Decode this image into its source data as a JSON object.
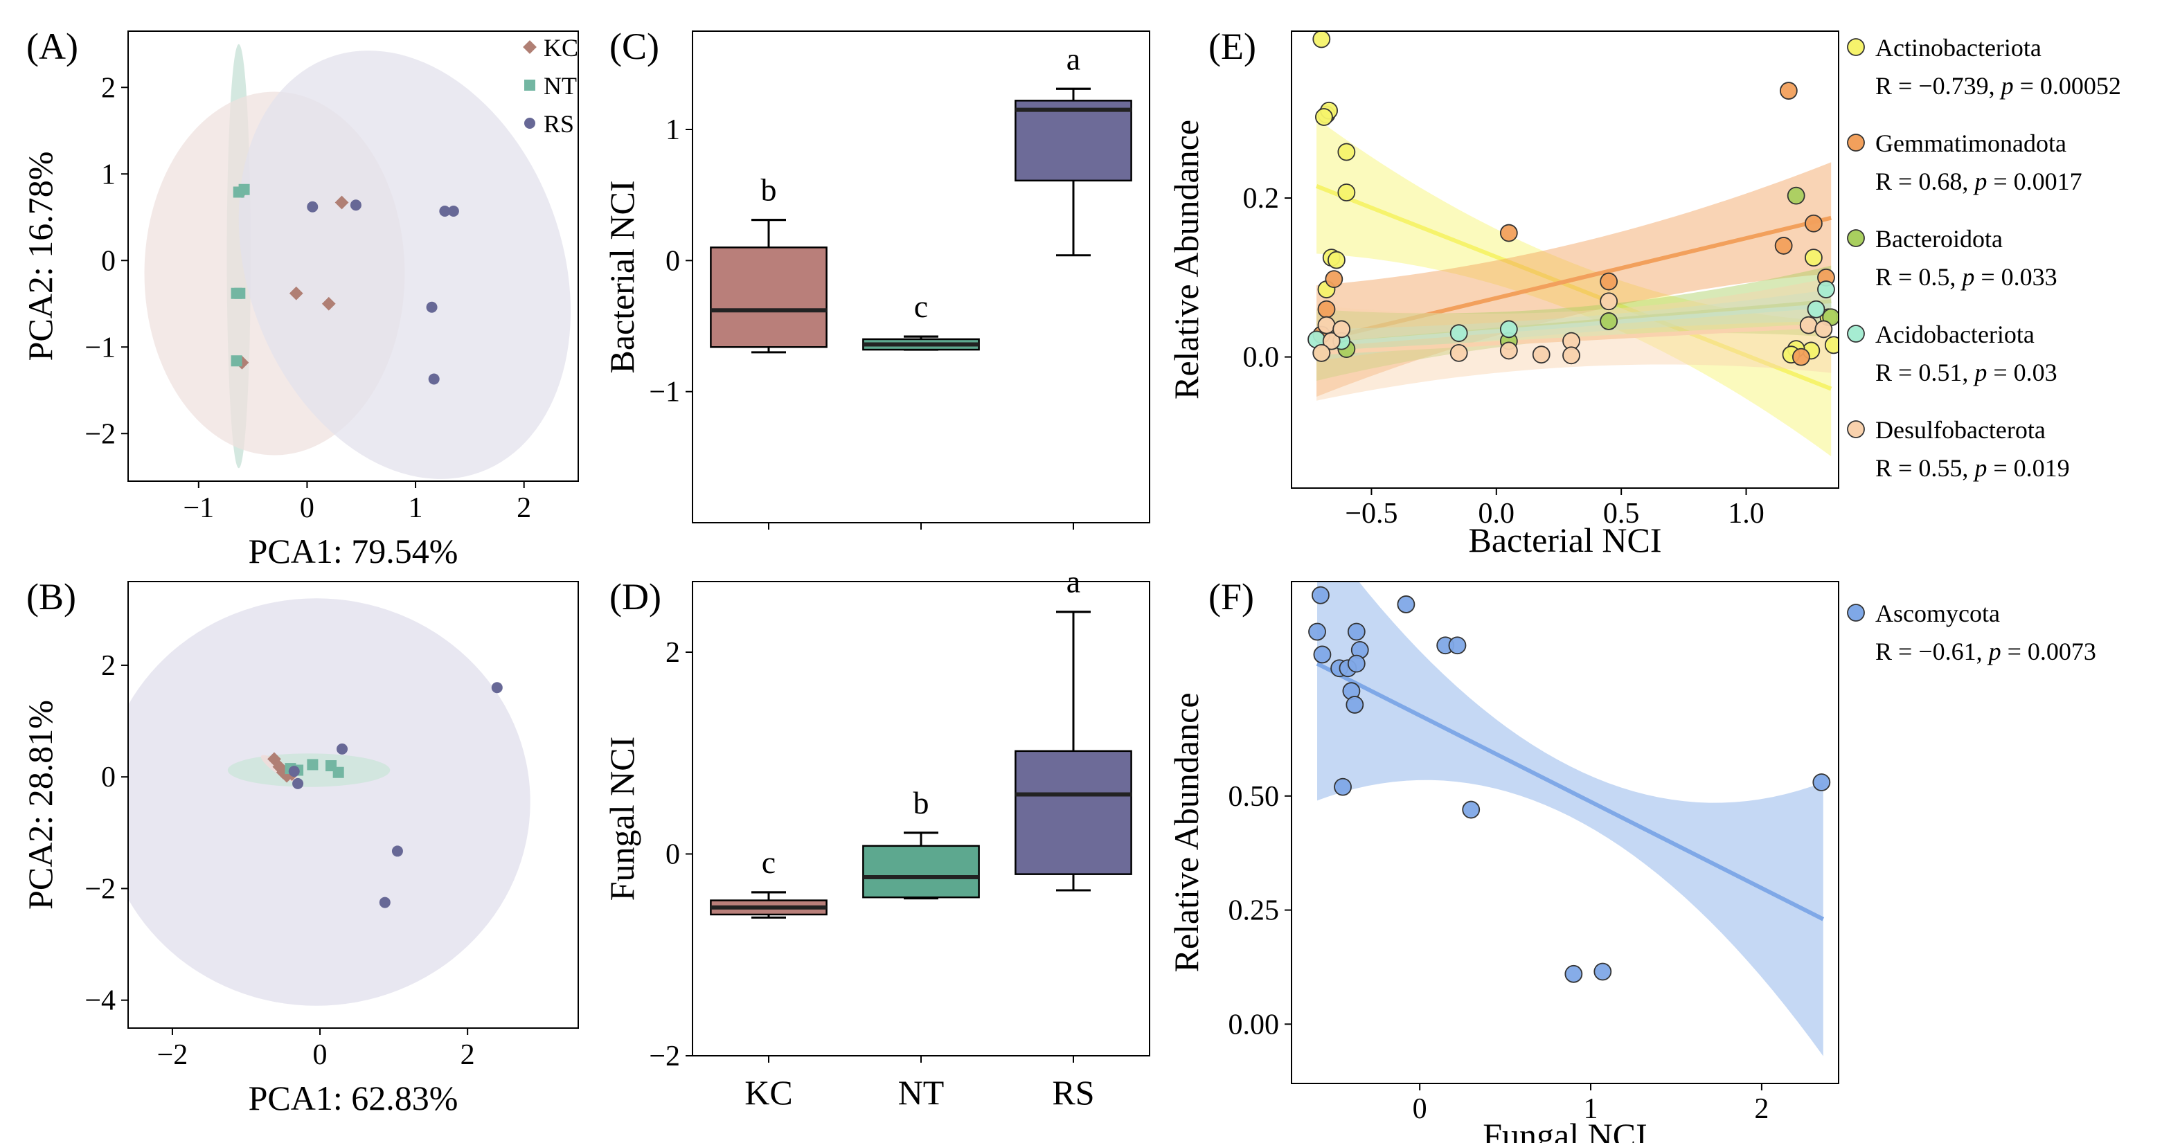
{
  "colors": {
    "KC": "#b07f74",
    "NT": "#73b6a2",
    "RS": "#676896",
    "KC_box": "#b97f7a",
    "NT_box": "#5da88f",
    "RS_box": "#6d6b98",
    "Actinobacteriota": "#f6f36c",
    "Gemmatimonadota": "#f2a05c",
    "Bacteroidota": "#a9cf5f",
    "Acidobacteriota": "#a6ecd2",
    "Desulfobacterota": "#f9d2ad",
    "Ascomycota": "#7fa8e7"
  },
  "chart_data": [
    {
      "panel": "(A)",
      "type": "scatter",
      "xlabel": "PCA1: 79.54%",
      "ylabel": "PCA2: 16.78%",
      "xlim": [
        -1.65,
        2.5
      ],
      "ylim": [
        -2.55,
        2.65
      ],
      "xticks": [
        "-1",
        "0",
        "1",
        "2"
      ],
      "yticks": [
        "-2",
        "-1",
        "0",
        "1",
        "2"
      ],
      "legend": [
        "KC",
        "NT",
        "RS"
      ],
      "series": [
        {
          "name": "KC",
          "points": [
            [
              -0.6,
              0.8
            ],
            [
              -0.6,
              -1.18
            ],
            [
              -0.1,
              -0.38
            ],
            [
              0.2,
              -0.5
            ],
            [
              0.32,
              0.67
            ]
          ]
        },
        {
          "name": "NT",
          "points": [
            [
              -0.63,
              0.79
            ],
            [
              -0.58,
              0.82
            ],
            [
              -0.65,
              -0.38
            ],
            [
              -0.62,
              -0.38
            ],
            [
              -0.65,
              -1.16
            ]
          ]
        },
        {
          "name": "RS",
          "points": [
            [
              0.05,
              0.62
            ],
            [
              0.45,
              0.64
            ],
            [
              1.27,
              0.57
            ],
            [
              1.35,
              0.57
            ],
            [
              1.15,
              -0.54
            ],
            [
              1.17,
              -1.37
            ]
          ]
        }
      ],
      "ellipses": [
        {
          "name": "NT",
          "cx": -0.63,
          "cy": 0.05,
          "rx": 0.11,
          "ry": 2.45,
          "angle": 0
        },
        {
          "name": "KC",
          "cx": -0.3,
          "cy": -0.15,
          "rx": 1.2,
          "ry": 2.1,
          "angle": 0
        },
        {
          "name": "RS",
          "cx": 0.9,
          "cy": -0.05,
          "rx": 1.45,
          "ry": 2.55,
          "angle": 20
        }
      ]
    },
    {
      "panel": "(B)",
      "type": "scatter",
      "xlabel": "PCA1: 62.83%",
      "ylabel": "PCA2: 28.81%",
      "xlim": [
        -2.6,
        3.5
      ],
      "ylim": [
        -4.5,
        3.5
      ],
      "xticks": [
        "-2",
        "0",
        "2"
      ],
      "yticks": [
        "-4",
        "-2",
        "0",
        "2"
      ],
      "series": [
        {
          "name": "KC",
          "points": [
            [
              -0.62,
              0.32
            ],
            [
              -0.55,
              0.18
            ],
            [
              -0.5,
              0.08
            ],
            [
              -0.45,
              0.02
            ],
            [
              -0.38,
              0.05
            ]
          ]
        },
        {
          "name": "NT",
          "points": [
            [
              -0.4,
              0.15
            ],
            [
              -0.1,
              0.22
            ],
            [
              0.15,
              0.2
            ],
            [
              0.25,
              0.08
            ],
            [
              -0.3,
              0.12
            ]
          ]
        },
        {
          "name": "RS",
          "points": [
            [
              -0.35,
              0.1
            ],
            [
              -0.3,
              -0.12
            ],
            [
              0.3,
              0.5
            ],
            [
              2.4,
              1.6
            ],
            [
              1.05,
              -1.33
            ],
            [
              0.88,
              -2.25
            ]
          ]
        }
      ],
      "ellipses": [
        {
          "name": "RS",
          "cx": -0.05,
          "cy": -0.45,
          "rx": 2.9,
          "ry": 3.65,
          "angle": 0
        },
        {
          "name": "NT",
          "cx": -0.15,
          "cy": 0.12,
          "rx": 1.1,
          "ry": 0.3,
          "angle": 0
        },
        {
          "name": "KC",
          "cx": -0.55,
          "cy": 0.15,
          "rx": 0.3,
          "ry": 0.1,
          "angle": -35
        }
      ]
    },
    {
      "panel": "(C)",
      "type": "box",
      "ylabel": "Bacterial NCI",
      "ylim": [
        -2.0,
        1.75
      ],
      "yticks": [
        "1",
        "0",
        "-1"
      ],
      "categories": [
        "KC",
        "NT",
        "RS"
      ],
      "boxes": [
        {
          "name": "KC",
          "min": -0.7,
          "q1": -0.66,
          "median": -0.38,
          "q3": 0.1,
          "max": 0.31,
          "letter": "b"
        },
        {
          "name": "NT",
          "min": -0.68,
          "q1": -0.68,
          "median": -0.64,
          "q3": -0.6,
          "max": -0.58,
          "letter": "c"
        },
        {
          "name": "RS",
          "min": 0.04,
          "q1": 0.61,
          "median": 1.15,
          "q3": 1.22,
          "max": 1.31,
          "letter": "a"
        }
      ]
    },
    {
      "panel": "(D)",
      "type": "box",
      "ylabel": "Fungal NCI",
      "ylim": [
        -2.0,
        2.7
      ],
      "yticks": [
        "2",
        "0",
        "-2"
      ],
      "categories": [
        "KC",
        "NT",
        "RS"
      ],
      "boxes": [
        {
          "name": "KC",
          "min": -0.63,
          "q1": -0.6,
          "median": -0.53,
          "q3": -0.46,
          "max": -0.38,
          "letter": "c"
        },
        {
          "name": "NT",
          "min": -0.44,
          "q1": -0.43,
          "median": -0.23,
          "q3": 0.08,
          "max": 0.21,
          "letter": "b"
        },
        {
          "name": "RS",
          "min": -0.36,
          "q1": -0.2,
          "median": 0.59,
          "q3": 1.02,
          "max": 2.4,
          "letter": "a"
        }
      ]
    },
    {
      "panel": "(E)",
      "type": "scatter",
      "xlabel": "Bacterial NCI",
      "ylabel": "Relative Abundance",
      "xlim": [
        -0.82,
        1.37
      ],
      "ylim": [
        -0.165,
        0.41
      ],
      "xticks": [
        "-0.5",
        "0.0",
        "0.5",
        "1.0"
      ],
      "yticks": [
        "0.0",
        "0.2"
      ],
      "series": [
        {
          "name": "Actinobacteriota",
          "stat": "R = −0.739, p = 0.00052",
          "line": [
            0.215,
            -0.04
          ],
          "ci": [
            0.03,
            0.085
          ],
          "points": [
            [
              -0.7,
              0.4
            ],
            [
              -0.68,
              0.305
            ],
            [
              -0.67,
              0.31
            ],
            [
              -0.69,
              0.302
            ],
            [
              -0.6,
              0.258
            ],
            [
              -0.6,
              0.207
            ],
            [
              -0.66,
              0.125
            ],
            [
              -0.64,
              0.122
            ],
            [
              -0.68,
              0.085
            ],
            [
              1.27,
              0.125
            ],
            [
              1.33,
              0.05
            ],
            [
              1.26,
              0.008
            ],
            [
              1.35,
              0.015
            ],
            [
              1.2,
              0.01
            ],
            [
              1.18,
              0.003
            ]
          ]
        },
        {
          "name": "Gemmatimonadota",
          "stat": "R = 0.68, p = 0.0017",
          "line": [
            0.02,
            0.175
          ],
          "ci": [
            0.045,
            0.07
          ],
          "points": [
            [
              1.17,
              0.335
            ],
            [
              1.27,
              0.168
            ],
            [
              1.15,
              0.14
            ],
            [
              1.32,
              0.1
            ],
            [
              0.05,
              0.156
            ],
            [
              0.45,
              0.095
            ],
            [
              -0.65,
              0.098
            ],
            [
              -0.68,
              0.06
            ],
            [
              -0.7,
              0.028
            ],
            [
              1.22,
              0.0
            ]
          ]
        },
        {
          "name": "Bacteroidota",
          "stat": "R = 0.5, p = 0.033",
          "line": [
            0.015,
            0.07
          ],
          "ci": [
            0.02,
            0.045
          ],
          "points": [
            [
              1.2,
              0.203
            ],
            [
              1.34,
              0.05
            ],
            [
              0.45,
              0.045
            ],
            [
              0.05,
              0.02
            ],
            [
              -0.7,
              0.005
            ],
            [
              -0.6,
              0.01
            ]
          ]
        },
        {
          "name": "Acidobacteriota",
          "stat": "R = 0.51, p = 0.03",
          "line": [
            0.015,
            0.065
          ],
          "ci": [
            0.01,
            0.02
          ],
          "points": [
            [
              -0.72,
              0.022
            ],
            [
              -0.62,
              0.02
            ],
            [
              1.32,
              0.085
            ],
            [
              1.28,
              0.06
            ],
            [
              -0.15,
              0.03
            ],
            [
              0.05,
              0.035
            ]
          ]
        },
        {
          "name": "Desulfobacterota",
          "stat": "R = 0.55, p = 0.019",
          "line": [
            0.005,
            0.04
          ],
          "ci": [
            0.035,
            0.06
          ],
          "points": [
            [
              -0.68,
              0.04
            ],
            [
              -0.66,
              0.02
            ],
            [
              -0.62,
              0.035
            ],
            [
              -0.15,
              0.005
            ],
            [
              0.05,
              0.008
            ],
            [
              0.18,
              0.003
            ],
            [
              0.3,
              0.02
            ],
            [
              0.45,
              0.07
            ],
            [
              0.3,
              0.002
            ],
            [
              1.25,
              0.04
            ],
            [
              1.31,
              0.035
            ],
            [
              -0.7,
              0.005
            ]
          ]
        }
      ]
    },
    {
      "panel": "(F)",
      "type": "scatter",
      "xlabel": "Fungal NCI",
      "ylabel": "Relative Abundance",
      "xlim": [
        -0.75,
        2.45
      ],
      "ylim": [
        -0.13,
        0.97
      ],
      "xticks": [
        "0",
        "1",
        "2"
      ],
      "yticks": [
        "0.00",
        "0.25",
        "0.50"
      ],
      "series": [
        {
          "name": "Ascomycota",
          "stat": "R = −0.61, p = 0.0073",
          "line": [
            0.79,
            0.23
          ],
          "ci": [
            0.055,
            0.3
          ],
          "points": [
            [
              -0.58,
              0.94
            ],
            [
              -0.6,
              0.86
            ],
            [
              -0.57,
              0.81
            ],
            [
              -0.47,
              0.78
            ],
            [
              -0.42,
              0.78
            ],
            [
              -0.37,
              0.86
            ],
            [
              -0.35,
              0.82
            ],
            [
              -0.37,
              0.79
            ],
            [
              -0.4,
              0.73
            ],
            [
              -0.38,
              0.7
            ],
            [
              -0.45,
              0.52
            ],
            [
              -0.08,
              0.92
            ],
            [
              0.15,
              0.83
            ],
            [
              0.22,
              0.83
            ],
            [
              0.3,
              0.47
            ],
            [
              0.9,
              0.11
            ],
            [
              1.07,
              0.115
            ],
            [
              2.35,
              0.53
            ]
          ]
        }
      ]
    }
  ]
}
